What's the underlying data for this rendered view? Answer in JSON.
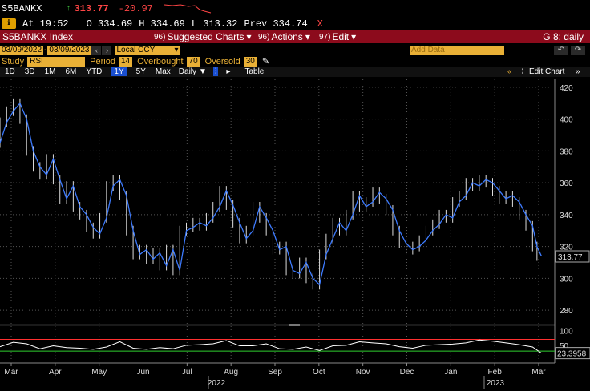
{
  "quote": {
    "ticker": "S5BANKX",
    "arrow": "↑",
    "last": "313.77",
    "change": "-20.97",
    "at_label": "At 19:52",
    "open": "O 334.69",
    "high": "H 334.69",
    "low": "L 313.32",
    "prev": "Prev 334.74",
    "close_x": "X"
  },
  "toolbar": {
    "title": "S5BANKX Index",
    "suggested_num": "96)",
    "suggested": "Suggested Charts",
    "actions_num": "96)",
    "actions": "Actions",
    "edit_num": "97)",
    "edit": "Edit",
    "graph": "G 8: daily"
  },
  "range": {
    "start": "03/09/2022",
    "end": "03/09/2023",
    "currency": "Local CCY",
    "add_data": "Add Data"
  },
  "study": {
    "study_label": "Study",
    "study_value": "RSI",
    "period_label": "Period",
    "period_value": "14",
    "overbought_label": "Overbought",
    "overbought_value": "70",
    "oversold_label": "Oversold",
    "oversold_value": "30"
  },
  "timeframes": [
    "1D",
    "3D",
    "1M",
    "6M",
    "YTD",
    "1Y",
    "5Y",
    "Max"
  ],
  "active_timeframe": "1Y",
  "daily": "Daily",
  "table": "Table",
  "edit_chart": "Edit Chart",
  "colors": {
    "price": "#3d7bff",
    "bar_red": "#8c0b1c",
    "field": "#e9b036",
    "rsi_upper": "#ff3030",
    "rsi_lower": "#2fd02f"
  },
  "chart_data": {
    "type": "line",
    "price_yticks": [
      280,
      300,
      320,
      340,
      360,
      380,
      400,
      420
    ],
    "ylim": [
      272,
      425
    ],
    "last_label": "313.77",
    "months": [
      "Mar",
      "Apr",
      "May",
      "Jun",
      "Jul",
      "Aug",
      "Sep",
      "Oct",
      "Nov",
      "Dec",
      "Jan",
      "Feb",
      "Mar"
    ],
    "years": [
      "2022",
      "2023"
    ],
    "rsi_yticks": [
      100,
      50
    ],
    "rsi_last_label": "23.3958",
    "rsi_ylim": [
      0,
      110
    ],
    "overbought": 70,
    "oversold": 30,
    "price_series": [
      [
        0,
        385
      ],
      [
        3,
        398
      ],
      [
        6,
        405
      ],
      [
        9,
        410
      ],
      [
        12,
        400
      ],
      [
        15,
        380
      ],
      [
        18,
        370
      ],
      [
        21,
        365
      ],
      [
        24,
        375
      ],
      [
        27,
        362
      ],
      [
        30,
        350
      ],
      [
        33,
        358
      ],
      [
        36,
        345
      ],
      [
        39,
        340
      ],
      [
        42,
        332
      ],
      [
        45,
        328
      ],
      [
        48,
        338
      ],
      [
        51,
        358
      ],
      [
        54,
        362
      ],
      [
        57,
        352
      ],
      [
        60,
        330
      ],
      [
        63,
        315
      ],
      [
        66,
        318
      ],
      [
        69,
        312
      ],
      [
        72,
        316
      ],
      [
        75,
        308
      ],
      [
        78,
        318
      ],
      [
        81,
        305
      ],
      [
        84,
        330
      ],
      [
        87,
        332
      ],
      [
        90,
        335
      ],
      [
        93,
        333
      ],
      [
        96,
        338
      ],
      [
        99,
        345
      ],
      [
        102,
        355
      ],
      [
        105,
        346
      ],
      [
        108,
        335
      ],
      [
        111,
        325
      ],
      [
        114,
        330
      ],
      [
        117,
        345
      ],
      [
        120,
        338
      ],
      [
        123,
        330
      ],
      [
        126,
        318
      ],
      [
        129,
        320
      ],
      [
        132,
        305
      ],
      [
        135,
        303
      ],
      [
        138,
        310
      ],
      [
        141,
        300
      ],
      [
        144,
        296
      ],
      [
        147,
        315
      ],
      [
        150,
        325
      ],
      [
        153,
        335
      ],
      [
        156,
        330
      ],
      [
        159,
        340
      ],
      [
        162,
        352
      ],
      [
        165,
        345
      ],
      [
        168,
        348
      ],
      [
        171,
        354
      ],
      [
        174,
        350
      ],
      [
        177,
        343
      ],
      [
        180,
        330
      ],
      [
        183,
        322
      ],
      [
        186,
        318
      ],
      [
        189,
        320
      ],
      [
        192,
        324
      ],
      [
        195,
        330
      ],
      [
        198,
        334
      ],
      [
        201,
        340
      ],
      [
        204,
        338
      ],
      [
        207,
        348
      ],
      [
        210,
        352
      ],
      [
        213,
        360
      ],
      [
        216,
        358
      ],
      [
        219,
        362
      ],
      [
        222,
        360
      ],
      [
        225,
        355
      ],
      [
        228,
        350
      ],
      [
        231,
        352
      ],
      [
        234,
        348
      ],
      [
        237,
        340
      ],
      [
        240,
        333
      ],
      [
        242,
        320
      ],
      [
        244,
        314
      ]
    ],
    "rsi_series": [
      [
        0,
        45
      ],
      [
        6,
        60
      ],
      [
        12,
        55
      ],
      [
        18,
        38
      ],
      [
        24,
        48
      ],
      [
        30,
        42
      ],
      [
        36,
        40
      ],
      [
        42,
        36
      ],
      [
        48,
        44
      ],
      [
        54,
        62
      ],
      [
        60,
        40
      ],
      [
        66,
        36
      ],
      [
        72,
        42
      ],
      [
        78,
        38
      ],
      [
        84,
        50
      ],
      [
        90,
        52
      ],
      [
        96,
        55
      ],
      [
        102,
        66
      ],
      [
        108,
        48
      ],
      [
        114,
        48
      ],
      [
        120,
        55
      ],
      [
        126,
        38
      ],
      [
        132,
        36
      ],
      [
        138,
        44
      ],
      [
        144,
        32
      ],
      [
        150,
        48
      ],
      [
        156,
        50
      ],
      [
        162,
        62
      ],
      [
        168,
        58
      ],
      [
        174,
        55
      ],
      [
        180,
        45
      ],
      [
        186,
        40
      ],
      [
        192,
        50
      ],
      [
        198,
        52
      ],
      [
        204,
        54
      ],
      [
        210,
        58
      ],
      [
        216,
        68
      ],
      [
        222,
        64
      ],
      [
        228,
        58
      ],
      [
        234,
        52
      ],
      [
        240,
        44
      ],
      [
        244,
        23
      ]
    ]
  }
}
